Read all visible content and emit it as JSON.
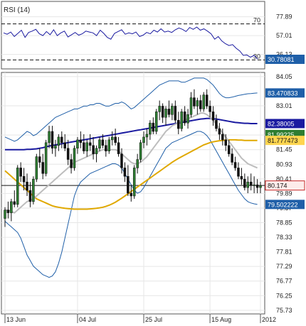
{
  "chart_data": [
    {
      "type": "line",
      "title": "RSI (14)",
      "ylim": [
        20,
        95
      ],
      "yticks": [
        "77.89",
        "57.01",
        "36.13"
      ],
      "reference_lines": [
        {
          "value": "70"
        },
        {
          "value": "30"
        }
      ],
      "current_value_label": "30.78081",
      "series": [
        {
          "values": [
            60.0,
            58.5,
            61.0,
            56.0,
            59.5,
            63.0,
            55.0,
            60.5,
            62.0,
            64.0,
            59.0,
            57.0,
            61.5,
            58.0,
            63.5,
            57.0,
            60.0,
            62.0,
            55.5,
            58.0,
            60.5,
            57.5,
            59.0,
            62.0,
            61.0,
            60.0,
            57.0,
            63.0,
            59.5,
            55.0,
            53.0,
            59.5,
            61.5,
            63.5,
            58.5,
            60.0,
            59.0,
            61.0,
            56.0,
            57.5,
            60.5,
            59.0,
            63.0,
            61.0,
            64.5,
            61.0,
            62.0,
            60.5,
            63.5,
            65.5,
            64.0,
            61.5,
            66.0,
            64.0,
            66.5,
            63.0,
            64.5,
            62.0,
            59.0,
            53.0,
            56.0,
            51.0,
            48.0,
            46.0,
            47.0,
            43.0,
            40.0,
            35.0,
            35.5,
            33.0,
            35.0,
            30.8
          ]
        }
      ]
    },
    {
      "type": "line",
      "subtype": "candlestick",
      "ylim": [
        75.6,
        84.2
      ],
      "yticks": [
        "84.05",
        "83.01",
        "81.97",
        "81.45",
        "80.93",
        "80.41",
        "79.89",
        "79.37",
        "78.85",
        "78.33",
        "77.81",
        "77.29",
        "76.77",
        "76.25",
        "75.73"
      ],
      "xticks": [
        {
          "label": "13 Jun",
          "index": 0
        },
        {
          "label": "04 Jul",
          "index": 23
        },
        {
          "label": "25 Jul",
          "index": 44
        },
        {
          "label": "15 Aug",
          "index": 65
        },
        {
          "label": "2012",
          "index": 81
        }
      ],
      "horizontal_line": 80.174,
      "price_tags": [
        {
          "label": "83.470833",
          "value": 83.47,
          "color": "#1f5fa8"
        },
        {
          "label": "82.38005",
          "value": 82.38,
          "color": "#1a1aa0"
        },
        {
          "label": "81.99225",
          "value": 81.99,
          "color": "#2e7d32"
        },
        {
          "label": "81.777473",
          "value": 81.78,
          "color": "#e0a800"
        },
        {
          "label": "80.174",
          "value": 80.174,
          "color": "#c62828"
        },
        {
          "label": "79.502222",
          "value": 79.5,
          "color": "#1f5fa8"
        }
      ],
      "candles": [
        [
          79.0,
          79.4,
          78.7,
          79.3
        ],
        [
          79.3,
          79.6,
          79.0,
          79.2
        ],
        [
          79.2,
          79.7,
          78.9,
          79.6
        ],
        [
          79.6,
          80.0,
          79.4,
          79.5
        ],
        [
          79.5,
          80.9,
          79.4,
          80.8
        ],
        [
          80.8,
          81.0,
          80.3,
          80.5
        ],
        [
          80.5,
          80.8,
          80.0,
          80.3
        ],
        [
          80.3,
          80.6,
          79.8,
          80.0
        ],
        [
          80.0,
          80.3,
          79.4,
          79.6
        ],
        [
          79.6,
          80.5,
          79.5,
          80.4
        ],
        [
          80.4,
          81.3,
          80.3,
          81.2
        ],
        [
          81.2,
          81.5,
          80.8,
          81.0
        ],
        [
          81.0,
          81.3,
          80.4,
          80.6
        ],
        [
          80.6,
          81.8,
          80.5,
          81.7
        ],
        [
          81.7,
          82.3,
          81.5,
          82.1
        ],
        [
          82.1,
          82.3,
          81.3,
          81.5
        ],
        [
          81.5,
          81.8,
          81.2,
          81.6
        ],
        [
          81.6,
          82.0,
          81.4,
          81.9
        ],
        [
          81.9,
          82.1,
          81.5,
          81.7
        ],
        [
          81.7,
          82.0,
          81.4,
          81.5
        ],
        [
          81.5,
          81.8,
          80.9,
          81.1
        ],
        [
          81.1,
          81.3,
          80.6,
          80.8
        ],
        [
          80.8,
          81.6,
          80.7,
          81.5
        ],
        [
          81.5,
          81.9,
          81.3,
          81.8
        ],
        [
          81.8,
          82.1,
          81.5,
          81.7
        ],
        [
          81.7,
          82.0,
          81.3,
          81.4
        ],
        [
          81.4,
          81.8,
          81.2,
          81.7
        ],
        [
          81.7,
          82.0,
          81.4,
          81.6
        ],
        [
          81.6,
          81.9,
          81.1,
          81.3
        ],
        [
          81.3,
          81.6,
          81.0,
          81.5
        ],
        [
          81.5,
          81.9,
          81.4,
          81.8
        ],
        [
          81.8,
          82.0,
          81.5,
          81.6
        ],
        [
          81.6,
          81.8,
          81.2,
          81.4
        ],
        [
          81.4,
          81.9,
          81.3,
          81.8
        ],
        [
          81.8,
          82.1,
          81.6,
          81.9
        ],
        [
          81.9,
          82.2,
          81.6,
          81.7
        ],
        [
          81.7,
          81.9,
          81.2,
          81.3
        ],
        [
          81.3,
          81.5,
          80.6,
          80.8
        ],
        [
          80.8,
          81.0,
          80.3,
          80.5
        ],
        [
          80.5,
          80.9,
          79.8,
          79.9
        ],
        [
          79.9,
          80.2,
          79.6,
          79.8
        ],
        [
          79.8,
          80.9,
          79.7,
          80.8
        ],
        [
          80.8,
          81.3,
          80.6,
          81.1
        ],
        [
          81.1,
          81.8,
          81.0,
          81.7
        ],
        [
          81.7,
          82.1,
          81.5,
          81.9
        ],
        [
          81.9,
          82.2,
          81.6,
          82.0
        ],
        [
          82.0,
          82.5,
          81.8,
          82.4
        ],
        [
          82.4,
          82.6,
          82.0,
          82.1
        ],
        [
          82.1,
          82.9,
          82.0,
          82.8
        ],
        [
          82.8,
          83.2,
          82.5,
          83.0
        ],
        [
          83.0,
          83.1,
          82.4,
          82.6
        ],
        [
          82.6,
          83.0,
          82.3,
          82.9
        ],
        [
          82.9,
          83.2,
          82.6,
          82.7
        ],
        [
          82.7,
          83.1,
          82.5,
          83.0
        ],
        [
          83.0,
          83.2,
          82.4,
          82.5
        ],
        [
          82.5,
          82.8,
          82.0,
          82.2
        ],
        [
          82.2,
          82.9,
          82.1,
          82.8
        ],
        [
          82.8,
          83.0,
          82.3,
          82.4
        ],
        [
          82.4,
          82.9,
          82.2,
          82.7
        ],
        [
          82.7,
          83.5,
          82.6,
          83.3
        ],
        [
          83.3,
          83.6,
          82.9,
          83.0
        ],
        [
          83.0,
          83.3,
          82.7,
          83.2
        ],
        [
          83.2,
          83.4,
          82.8,
          82.9
        ],
        [
          82.9,
          83.5,
          82.8,
          83.4
        ],
        [
          83.4,
          83.6,
          82.9,
          83.0
        ],
        [
          83.0,
          83.2,
          82.6,
          82.8
        ],
        [
          82.8,
          83.0,
          82.3,
          82.5
        ],
        [
          82.5,
          82.7,
          82.1,
          82.2
        ],
        [
          82.2,
          82.4,
          81.8,
          82.0
        ],
        [
          82.0,
          82.2,
          81.6,
          81.8
        ],
        [
          81.8,
          82.0,
          81.4,
          81.6
        ],
        [
          81.6,
          81.8,
          81.2,
          81.3
        ],
        [
          81.3,
          81.5,
          80.9,
          81.0
        ],
        [
          81.0,
          81.2,
          80.7,
          80.8
        ],
        [
          80.8,
          81.0,
          80.4,
          80.5
        ],
        [
          80.5,
          80.8,
          80.2,
          80.4
        ],
        [
          80.4,
          80.6,
          80.0,
          80.1
        ],
        [
          80.1,
          80.5,
          79.9,
          80.3
        ],
        [
          80.3,
          80.6,
          80.0,
          80.17
        ],
        [
          80.17,
          80.5,
          79.9,
          80.2
        ],
        [
          80.2,
          80.4,
          79.9,
          80.1
        ],
        [
          80.1,
          80.3,
          79.9,
          80.17
        ]
      ],
      "series": [
        {
          "color": "#1f5fa8",
          "values": [
            81.9,
            81.85,
            81.8,
            81.75,
            81.8,
            81.9,
            82.0,
            82.1,
            82.05,
            81.95,
            82.0,
            82.1,
            82.2,
            82.3,
            82.4,
            82.5,
            82.6,
            82.65,
            82.7,
            82.75,
            82.8,
            82.85,
            82.9,
            82.9,
            82.95,
            83.0,
            83.0,
            83.05,
            83.05,
            83.1,
            83.1,
            83.05,
            83.0,
            83.0,
            83.05,
            83.1,
            83.1,
            83.15,
            83.1,
            83.0,
            82.9,
            82.95,
            83.05,
            83.15,
            83.25,
            83.35,
            83.45,
            83.55,
            83.65,
            83.75,
            83.8,
            83.85,
            83.9,
            83.9,
            83.9,
            83.9,
            83.85,
            83.85,
            83.9,
            83.95,
            84.0,
            84.0,
            84.0,
            84.0,
            83.95,
            83.85,
            83.75,
            83.6,
            83.45,
            83.35,
            83.3,
            83.3,
            83.32,
            83.35,
            83.38,
            83.4,
            83.42,
            83.44,
            83.45,
            83.46,
            83.47
          ]
        },
        {
          "color": "#1f5fa8",
          "values": [
            78.9,
            78.8,
            78.7,
            78.6,
            78.5,
            78.3,
            78.0,
            77.7,
            77.5,
            77.3,
            77.2,
            77.1,
            77.0,
            76.95,
            76.9,
            76.95,
            77.1,
            77.4,
            77.8,
            78.3,
            78.8,
            79.3,
            79.8,
            80.1,
            80.3,
            80.4,
            80.5,
            80.6,
            80.65,
            80.7,
            80.75,
            80.8,
            80.85,
            80.9,
            80.95,
            80.95,
            80.9,
            80.8,
            80.6,
            80.4,
            80.2,
            80.0,
            79.9,
            79.95,
            80.1,
            80.3,
            80.5,
            80.7,
            80.9,
            81.1,
            81.3,
            81.5,
            81.6,
            81.7,
            81.75,
            81.8,
            81.85,
            81.9,
            81.95,
            82.0,
            82.05,
            82.1,
            82.1,
            82.05,
            81.95,
            81.8,
            81.6,
            81.4,
            81.2,
            81.0,
            80.8,
            80.6,
            80.4,
            80.2,
            80.0,
            79.85,
            79.7,
            79.6,
            79.55,
            79.52,
            79.5
          ]
        },
        {
          "color": "#1a1aa0",
          "values": [
            81.45,
            81.45,
            81.45,
            81.45,
            81.45,
            81.45,
            81.45,
            81.46,
            81.46,
            81.47,
            81.48,
            81.5,
            81.52,
            81.55,
            81.58,
            81.6,
            81.62,
            81.64,
            81.66,
            81.68,
            81.7,
            81.72,
            81.74,
            81.76,
            81.78,
            81.8,
            81.82,
            81.84,
            81.86,
            81.88,
            81.9,
            81.92,
            81.94,
            81.96,
            81.98,
            82.0,
            82.02,
            82.04,
            82.06,
            82.08,
            82.1,
            82.12,
            82.14,
            82.16,
            82.18,
            82.2,
            82.22,
            82.24,
            82.26,
            82.28,
            82.3,
            82.32,
            82.34,
            82.36,
            82.38,
            82.4,
            82.42,
            82.44,
            82.46,
            82.48,
            82.5,
            82.52,
            82.54,
            82.55,
            82.56,
            82.56,
            82.55,
            82.54,
            82.52,
            82.5,
            82.48,
            82.46,
            82.44,
            82.42,
            82.41,
            82.4,
            82.39,
            82.39,
            82.38,
            82.38,
            82.38
          ]
        },
        {
          "color": "#e0a800",
          "values": [
            80.7,
            80.6,
            80.5,
            80.4,
            80.3,
            80.2,
            80.1,
            80.0,
            79.9,
            79.8,
            79.7,
            79.65,
            79.6,
            79.55,
            79.5,
            79.45,
            79.42,
            79.4,
            79.38,
            79.36,
            79.35,
            79.34,
            79.33,
            79.33,
            79.33,
            79.33,
            79.33,
            79.34,
            79.35,
            79.36,
            79.38,
            79.4,
            79.43,
            79.47,
            79.52,
            79.58,
            79.65,
            79.72,
            79.8,
            79.88,
            79.96,
            80.04,
            80.12,
            80.2,
            80.28,
            80.36,
            80.44,
            80.52,
            80.6,
            80.68,
            80.76,
            80.84,
            80.92,
            81.0,
            81.07,
            81.14,
            81.2,
            81.26,
            81.32,
            81.38,
            81.44,
            81.5,
            81.56,
            81.62,
            81.66,
            81.7,
            81.73,
            81.75,
            81.77,
            81.78,
            81.79,
            81.8,
            81.8,
            81.8,
            81.79,
            81.79,
            81.78,
            81.78,
            81.78,
            81.78,
            81.78
          ]
        },
        {
          "color": "#bdbdbd",
          "values": [
            79.3,
            79.3,
            79.25,
            79.2,
            79.3,
            79.4,
            79.5,
            79.6,
            79.65,
            79.7,
            79.8,
            79.9,
            80.0,
            80.1,
            80.2,
            80.3,
            80.4,
            80.5,
            80.6,
            80.7,
            80.8,
            80.9,
            81.0,
            81.05,
            81.1,
            81.15,
            81.2,
            81.25,
            81.3,
            81.35,
            81.4,
            81.45,
            81.45,
            81.45,
            81.45,
            81.45,
            81.4,
            81.3,
            81.2,
            81.1,
            81.0,
            80.95,
            80.95,
            81.0,
            81.1,
            81.2,
            81.35,
            81.5,
            81.65,
            81.8,
            81.95,
            82.1,
            82.2,
            82.3,
            82.35,
            82.4,
            82.45,
            82.5,
            82.55,
            82.6,
            82.65,
            82.7,
            82.75,
            82.75,
            82.7,
            82.6,
            82.5,
            82.35,
            82.2,
            82.05,
            81.9,
            81.75,
            81.6,
            81.45,
            81.3,
            81.15,
            81.05,
            80.95,
            80.9,
            80.85,
            80.8
          ]
        }
      ]
    }
  ]
}
